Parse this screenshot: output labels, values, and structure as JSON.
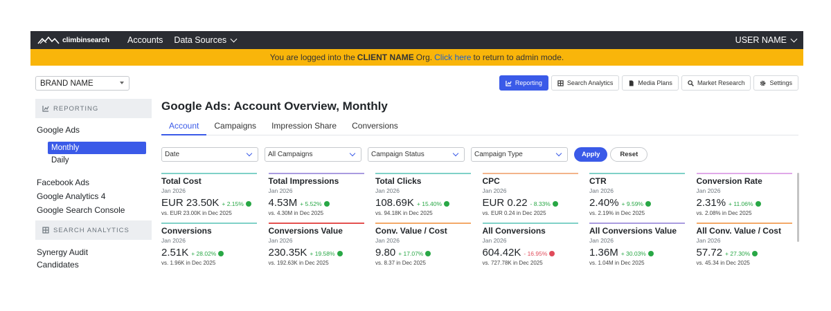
{
  "nav": {
    "logo_text": "climbinsearch",
    "accounts": "Accounts",
    "data_sources": "Data Sources",
    "user": "USER NAME"
  },
  "banner": {
    "prefix": "You are logged into the",
    "client": "CLIENT NAME",
    "mid": "Org.",
    "link": "Click here",
    "suffix": "to return to admin mode."
  },
  "sidebar": {
    "brand": "BRAND NAME",
    "reporting_head": "REPORTING",
    "google_ads": "Google Ads",
    "monthly": "Monthly",
    "daily": "Daily",
    "facebook_ads": "Facebook Ads",
    "ga4": "Google Analytics 4",
    "gsc": "Google Search Console",
    "search_head": "SEARCH ANALYTICS",
    "synergy": "Synergy Audit",
    "candidates": "Candidates"
  },
  "toolbar": {
    "reporting": "Reporting",
    "search_analytics": "Search Analytics",
    "media_plans": "Media Plans",
    "market_research": "Market Research",
    "settings": "Settings"
  },
  "page": {
    "title": "Google Ads: Account Overview, Monthly",
    "tabs": [
      "Account",
      "Campaigns",
      "Impression Share",
      "Conversions"
    ]
  },
  "filters": {
    "date": "Date",
    "campaigns": "All Campaigns",
    "status": "Campaign Status",
    "type": "Campaign Type",
    "apply": "Apply",
    "reset": "Reset"
  },
  "metrics": [
    {
      "title": "Total Cost",
      "date": "Jan 2026",
      "value": "EUR 23.50K",
      "change": "+ 2.15%",
      "dir": "up",
      "compare": "vs. EUR 23.00K in Dec 2025",
      "color": "#7fd1c7"
    },
    {
      "title": "Total Impressions",
      "date": "Jan 2026",
      "value": "4.53M",
      "change": "+ 5.52%",
      "dir": "up",
      "compare": "vs. 4.30M in Dec 2025",
      "color": "#a99be0"
    },
    {
      "title": "Total Clicks",
      "date": "Jan 2026",
      "value": "108.69K",
      "change": "+ 15.40%",
      "dir": "up",
      "compare": "vs. 94.18K in Dec 2025",
      "color": "#7fd1c7"
    },
    {
      "title": "CPC",
      "date": "Jan 2026",
      "value": "EUR 0.22",
      "change": "- 8.33%",
      "dir": "up",
      "compare": "vs. EUR 0.24 in Dec 2025",
      "color": "#f3b48a"
    },
    {
      "title": "CTR",
      "date": "Jan 2026",
      "value": "2.40%",
      "change": "+ 9.59%",
      "dir": "up",
      "compare": "vs. 2.19% in Dec 2025",
      "color": "#7fd1c7"
    },
    {
      "title": "Conversion Rate",
      "date": "Jan 2026",
      "value": "2.31%",
      "change": "+ 11.06%",
      "dir": "up",
      "compare": "vs. 2.08% in Dec 2025",
      "color": "#e0a8e8"
    },
    {
      "title": "Conversions",
      "date": "Jan 2026",
      "value": "2.51K",
      "change": "+ 28.02%",
      "dir": "up",
      "compare": "vs. 1.96K in Dec 2025",
      "color": "#7fd1c7"
    },
    {
      "title": "Conversions Value",
      "date": "Jan 2026",
      "value": "230.35K",
      "change": "+ 19.58%",
      "dir": "up",
      "compare": "vs. 192.63K in Dec 2025",
      "color": "#e4504f"
    },
    {
      "title": "Conv. Value / Cost",
      "date": "Jan 2026",
      "value": "9.80",
      "change": "+ 17.07%",
      "dir": "up",
      "compare": "vs. 8.37 in Dec 2025",
      "color": "#f3a867"
    },
    {
      "title": "All Conversions",
      "date": "Jan 2026",
      "value": "604.42K",
      "change": "- 16.95%",
      "dir": "down",
      "compare": "vs. 727.78K in Dec 2025",
      "color": "#7fd1c7"
    },
    {
      "title": "All Conversions Value",
      "date": "Jan 2026",
      "value": "1.36M",
      "change": "+ 30.03%",
      "dir": "up",
      "compare": "vs. 1.04M in Dec 2025",
      "color": "#a99be0"
    },
    {
      "title": "All Conv. Value / Cost",
      "date": "Jan 2026",
      "value": "57.72",
      "change": "+ 27.30%",
      "dir": "up",
      "compare": "vs. 45.34 in Dec 2025",
      "color": "#f3a867"
    }
  ]
}
